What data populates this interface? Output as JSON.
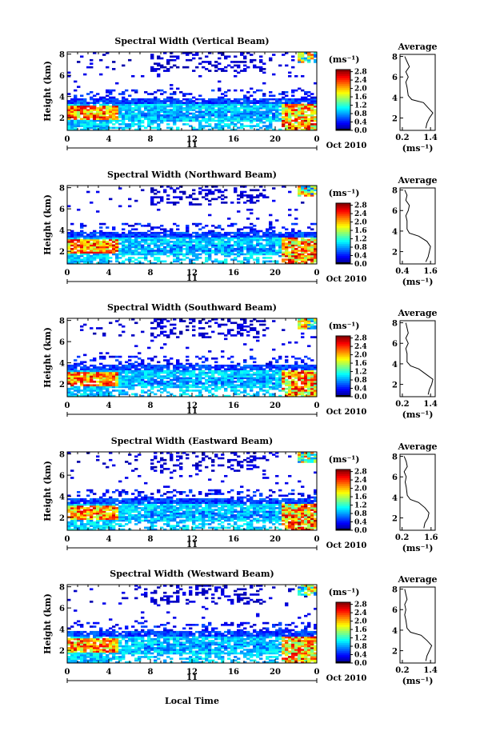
{
  "figure": {
    "xlabel": "Local Time",
    "colorbar_unit": "(ms⁻¹)",
    "profile_title": "Average",
    "profile_xlabel": "(ms⁻¹)",
    "date_label": "Oct 2010",
    "day_label": "11"
  },
  "chart_data": [
    {
      "type": "heatmap",
      "title": "Spectral Width (Vertical Beam)",
      "ylabel": "Height (km)",
      "x_ticks": [
        "0",
        "4",
        "8",
        "12",
        "16",
        "20",
        "0"
      ],
      "xlim": [
        0,
        24
      ],
      "y_ticks": [
        "2",
        "4",
        "6",
        "8"
      ],
      "ylim": [
        0.8,
        8.2
      ],
      "colorbar_ticks": [
        "0.0",
        "0.4",
        "0.8",
        "1.2",
        "1.6",
        "2.0",
        "2.4",
        "2.8"
      ],
      "colorbar_range": [
        0,
        2.9
      ],
      "profile": {
        "x_ticks": [
          "0.2",
          "1.4"
        ],
        "xlim": [
          0.1,
          1.6
        ],
        "heights": [
          1.0,
          1.5,
          2.0,
          2.5,
          3.0,
          3.5,
          3.8,
          4.2,
          5.0,
          5.5,
          6.0,
          6.5,
          7.0,
          7.5,
          8.0
        ],
        "values": [
          1.2,
          1.25,
          1.35,
          1.5,
          1.3,
          1.1,
          0.6,
          0.45,
          0.4,
          0.35,
          0.45,
          0.35,
          0.5,
          0.4,
          0.3
        ]
      }
    },
    {
      "type": "heatmap",
      "title": "Spectral Width (Northward Beam)",
      "ylabel": "Height (km)",
      "x_ticks": [
        "0",
        "4",
        "8",
        "12",
        "16",
        "20",
        "0"
      ],
      "xlim": [
        0,
        24
      ],
      "y_ticks": [
        "2",
        "4",
        "6",
        "8"
      ],
      "ylim": [
        0.8,
        8.2
      ],
      "colorbar_ticks": [
        "0.0",
        "0.4",
        "0.8",
        "1.2",
        "1.6",
        "2.0",
        "2.4",
        "2.8"
      ],
      "colorbar_range": [
        0,
        2.9
      ],
      "profile": {
        "x_ticks": [
          "0.4",
          "1.6"
        ],
        "xlim": [
          0.3,
          1.8
        ],
        "heights": [
          1.0,
          1.5,
          2.0,
          2.5,
          3.0,
          3.5,
          3.8,
          4.2,
          5.0,
          5.5,
          6.0,
          6.5,
          7.0,
          7.5,
          8.0
        ],
        "values": [
          1.4,
          1.5,
          1.55,
          1.6,
          1.45,
          1.1,
          0.7,
          0.6,
          0.6,
          0.55,
          0.65,
          0.7,
          0.55,
          0.6,
          0.5
        ]
      }
    },
    {
      "type": "heatmap",
      "title": "Spectral Width (Southward Beam)",
      "ylabel": "Height (km)",
      "x_ticks": [
        "0",
        "4",
        "8",
        "12",
        "16",
        "20",
        "0"
      ],
      "xlim": [
        0,
        24
      ],
      "y_ticks": [
        "2",
        "4",
        "6",
        "8"
      ],
      "ylim": [
        0.8,
        8.2
      ],
      "colorbar_ticks": [
        "0.0",
        "0.4",
        "0.8",
        "1.2",
        "1.6",
        "2.0",
        "2.4",
        "2.8"
      ],
      "colorbar_range": [
        0,
        2.9
      ],
      "profile": {
        "x_ticks": [
          "0.2",
          "1.4"
        ],
        "xlim": [
          0.1,
          1.6
        ],
        "heights": [
          1.0,
          1.5,
          2.0,
          2.5,
          3.0,
          3.5,
          3.8,
          4.2,
          5.0,
          5.5,
          6.0,
          6.5,
          7.0,
          7.5,
          8.0
        ],
        "values": [
          1.3,
          1.35,
          1.45,
          1.5,
          1.2,
          0.9,
          0.55,
          0.4,
          0.4,
          0.35,
          0.45,
          0.35,
          0.45,
          0.4,
          0.35
        ]
      }
    },
    {
      "type": "heatmap",
      "title": "Spectral Width (Eastward Beam)",
      "ylabel": "Height (km)",
      "x_ticks": [
        "0",
        "4",
        "8",
        "12",
        "16",
        "20",
        "0"
      ],
      "xlim": [
        0,
        24
      ],
      "y_ticks": [
        "2",
        "4",
        "6",
        "8"
      ],
      "ylim": [
        0.8,
        8.2
      ],
      "colorbar_ticks": [
        "0.0",
        "0.4",
        "0.8",
        "1.2",
        "1.6",
        "2.0",
        "2.4",
        "2.8"
      ],
      "colorbar_range": [
        0,
        2.9
      ],
      "profile": {
        "x_ticks": [
          "0.2",
          "1.6"
        ],
        "xlim": [
          0.1,
          1.8
        ],
        "heights": [
          1.0,
          1.5,
          2.0,
          2.5,
          3.0,
          3.5,
          3.8,
          4.2,
          5.0,
          5.5,
          6.0,
          6.5,
          7.0,
          7.5,
          8.0
        ],
        "values": [
          1.25,
          1.3,
          1.45,
          1.5,
          1.3,
          1.0,
          0.6,
          0.45,
          0.4,
          0.35,
          0.4,
          0.3,
          0.45,
          0.4,
          0.3
        ]
      }
    },
    {
      "type": "heatmap",
      "title": "Spectral Width (Westward Beam)",
      "ylabel": "Height (km)",
      "x_ticks": [
        "0",
        "4",
        "8",
        "12",
        "16",
        "20",
        "0"
      ],
      "xlim": [
        0,
        24
      ],
      "y_ticks": [
        "2",
        "4",
        "6",
        "8"
      ],
      "ylim": [
        0.8,
        8.2
      ],
      "colorbar_ticks": [
        "0.0",
        "0.4",
        "0.8",
        "1.2",
        "1.6",
        "2.0",
        "2.4",
        "2.8"
      ],
      "colorbar_range": [
        0,
        2.9
      ],
      "profile": {
        "x_ticks": [
          "0.2",
          "1.4"
        ],
        "xlim": [
          0.1,
          1.6
        ],
        "heights": [
          1.0,
          1.5,
          2.0,
          2.5,
          3.0,
          3.5,
          3.8,
          4.2,
          5.0,
          5.5,
          6.0,
          6.5,
          7.0,
          7.5,
          8.0
        ],
        "values": [
          1.2,
          1.25,
          1.35,
          1.45,
          1.25,
          1.0,
          0.55,
          0.4,
          0.35,
          0.3,
          0.35,
          0.3,
          0.4,
          0.35,
          0.3
        ]
      }
    }
  ]
}
